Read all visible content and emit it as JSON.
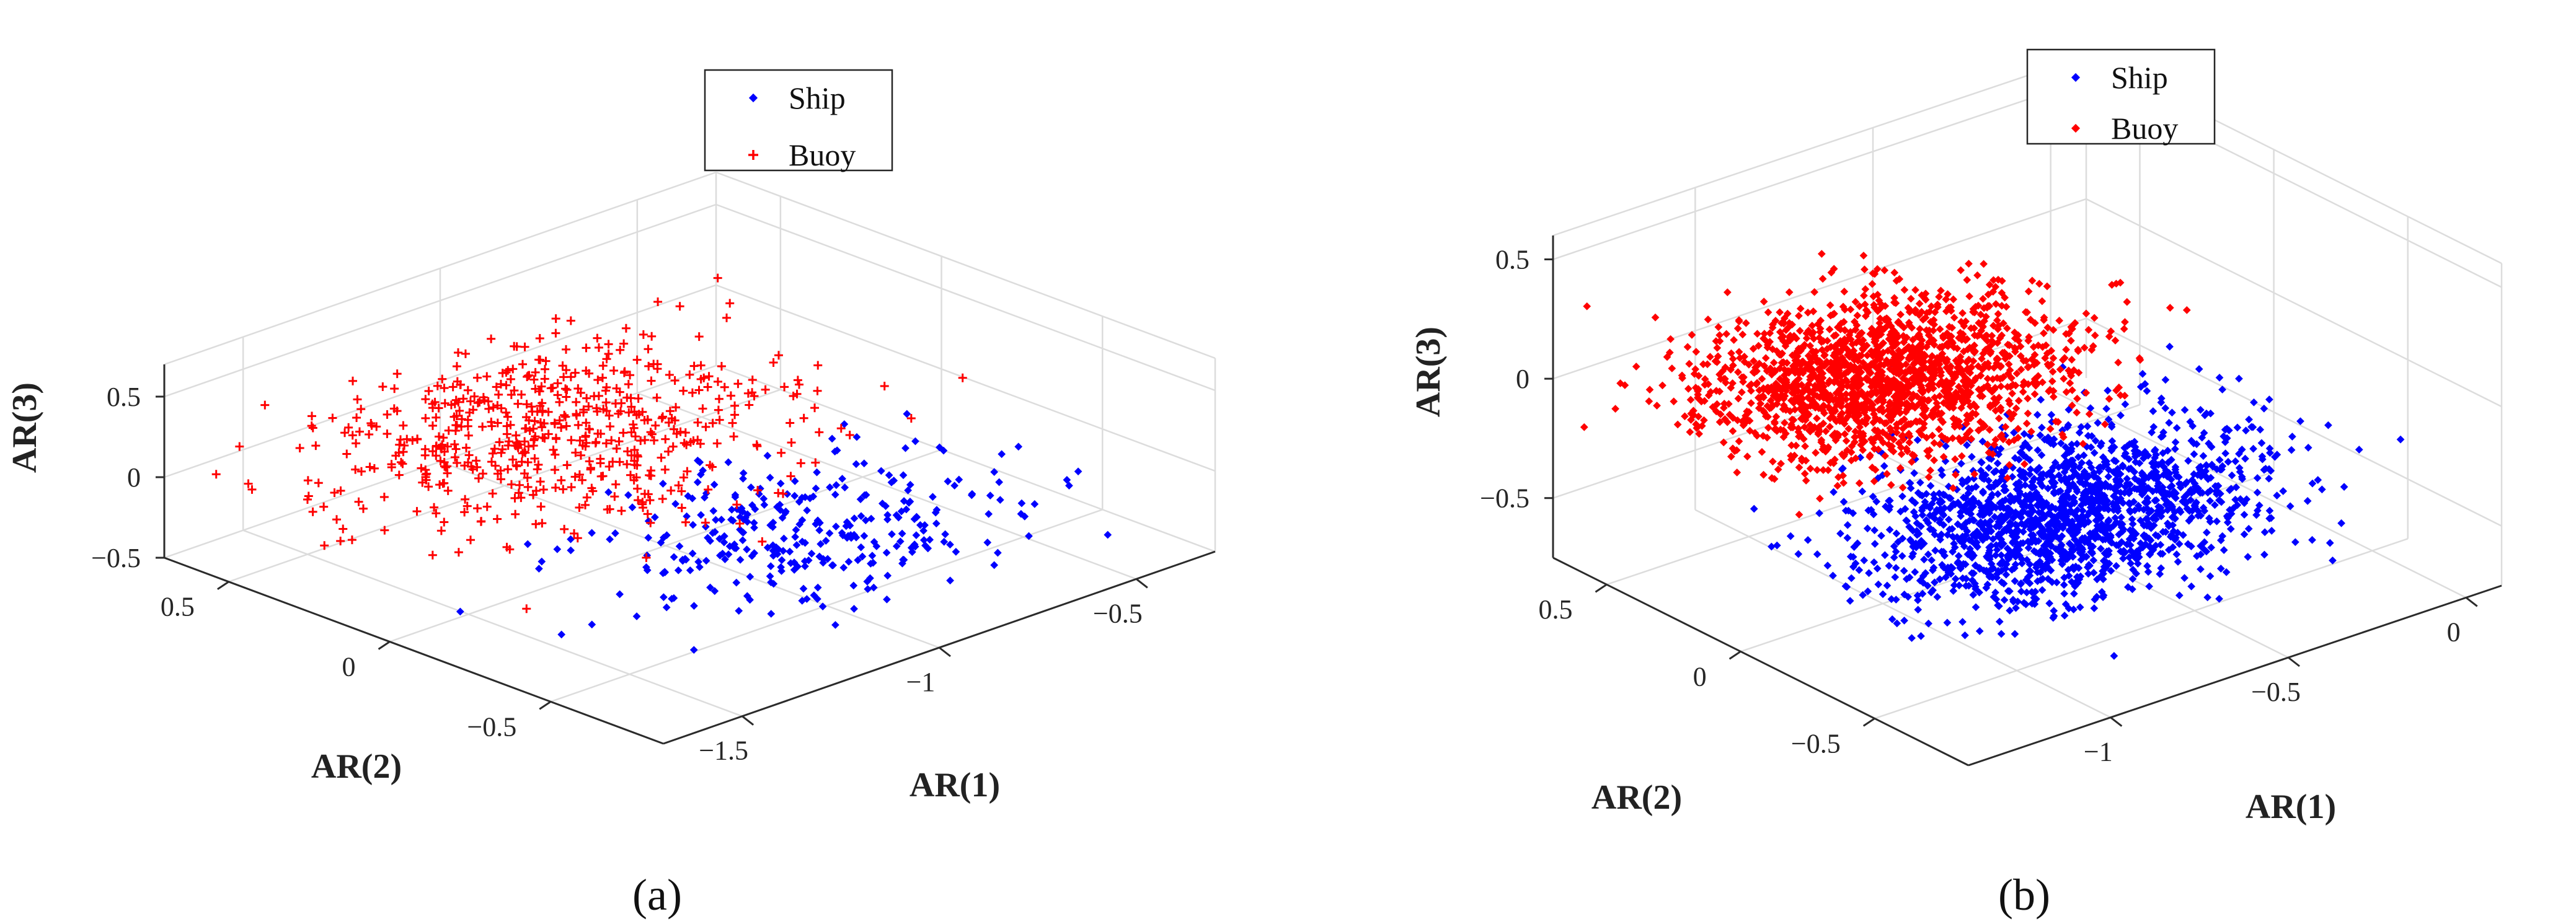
{
  "chart_data": [
    {
      "type": "scatter",
      "panel": "a",
      "caption": "(a)",
      "xlabel": "AR(1)",
      "ylabel": "AR(2)",
      "zlabel": "AR(3)",
      "xlim": [
        -1.7,
        -0.3
      ],
      "ylim": [
        -0.85,
        0.7
      ],
      "zlim": [
        -0.5,
        0.7
      ],
      "xticks": [
        -1.5,
        -1,
        -0.5
      ],
      "yticks": [
        0.5,
        0,
        -0.5
      ],
      "zticks": [
        0.5,
        0,
        -0.5
      ],
      "grid": true,
      "legend_position": "top-center",
      "series": [
        {
          "name": "Ship",
          "marker": "dot",
          "color": "#0000ff",
          "clusters": [
            {
              "count": 330,
              "center": [
                -0.95,
                -0.4,
                -0.15
              ],
              "spread": [
                0.22,
                0.18,
                0.07
              ]
            }
          ],
          "points": [
            [
              -1.4,
              -0.4,
              -0.3
            ],
            [
              -0.45,
              -0.7,
              -0.38
            ],
            [
              -0.7,
              -0.15,
              0.02
            ],
            [
              -1.5,
              -0.7,
              -0.2
            ],
            [
              -0.55,
              -0.3,
              -0.05
            ]
          ]
        },
        {
          "name": "Buoy",
          "marker": "plus",
          "color": "#ff0000",
          "clusters": [
            {
              "count": 620,
              "center": [
                -1.1,
                0.25,
                0.1
              ],
              "spread": [
                0.25,
                0.25,
                0.09
              ]
            }
          ],
          "points": [
            [
              -1.65,
              0.6,
              0.05
            ],
            [
              -1.6,
              0.55,
              -0.05
            ],
            [
              -0.6,
              0.3,
              0.35
            ],
            [
              -0.5,
              0.45,
              0.4
            ],
            [
              -1.55,
              0.65,
              0.1
            ]
          ]
        }
      ]
    },
    {
      "type": "scatter",
      "panel": "b",
      "caption": "(b)",
      "xlabel": "AR(1)",
      "ylabel": "AR(2)",
      "zlabel": "AR(3)",
      "xlim": [
        -1.4,
        0.1
      ],
      "ylim": [
        -0.85,
        0.7
      ],
      "zlim": [
        -0.75,
        0.6
      ],
      "xticks": [
        -1,
        -0.5,
        0
      ],
      "yticks": [
        0.5,
        0,
        -0.5
      ],
      "zticks": [
        0.5,
        0,
        -0.5
      ],
      "grid": true,
      "legend_position": "top-center",
      "series": [
        {
          "name": "Ship",
          "marker": "dot",
          "color": "#0000ff",
          "clusters": [
            {
              "count": 1700,
              "center": [
                -0.75,
                -0.35,
                -0.3
              ],
              "spread": [
                0.25,
                0.17,
                0.11
              ]
            }
          ],
          "points": [
            [
              -0.3,
              -0.75,
              -0.5
            ],
            [
              -0.2,
              -0.65,
              -0.45
            ],
            [
              -0.9,
              0.1,
              0.15
            ],
            [
              -0.35,
              -0.5,
              -0.6
            ]
          ]
        },
        {
          "name": "Buoy",
          "marker": "dot",
          "color": "#ff0000",
          "clusters": [
            {
              "count": 1800,
              "center": [
                -0.9,
                0.15,
                0.05
              ],
              "spread": [
                0.22,
                0.2,
                0.08
              ]
            }
          ],
          "points": [
            [
              -1.35,
              0.65,
              -0.2
            ],
            [
              -1.3,
              0.6,
              -0.12
            ],
            [
              -1.2,
              0.5,
              -0.18
            ],
            [
              -0.6,
              0.1,
              0.35
            ],
            [
              -0.5,
              0.05,
              0.3
            ]
          ]
        }
      ]
    }
  ]
}
